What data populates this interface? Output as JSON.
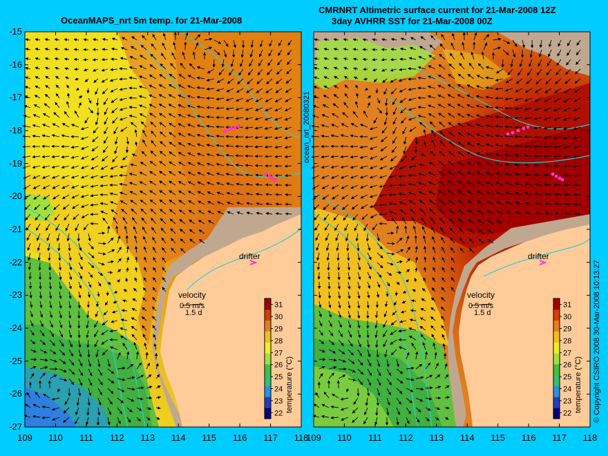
{
  "titles": {
    "left": "OceanMAPS_nrt 5m temp. for 21-Mar-2008",
    "right_line1": "CMRNRT Altimetric surface current for 21-Mar-2008 12Z",
    "right_line2": "3day AVHRR SST for 21-Mar-2008 00Z"
  },
  "axes": {
    "lat_labels": [
      "-15",
      "-16",
      "-17",
      "-18",
      "-19",
      "-20",
      "-21",
      "-22",
      "-23",
      "-24",
      "-25",
      "-26",
      "-27"
    ],
    "lon_labels": [
      "109",
      "110",
      "111",
      "112",
      "113",
      "114",
      "115",
      "116",
      "117",
      "118"
    ]
  },
  "map": {
    "lat_range": [
      -27,
      -15
    ],
    "lon_range": [
      109,
      118
    ],
    "land_color": "#ffcc99",
    "coast_shelf_color": "#c0a890",
    "contour_color": "#33cccc"
  },
  "annotations": {
    "drifter": "drifter",
    "velocity": "velocity",
    "velocity_scale": "0.5 m/s",
    "velocity_time": "1.5 d"
  },
  "colorbar": {
    "label": "temperature (°C)",
    "ticks": [
      "31",
      "30",
      "29",
      "28",
      "27",
      "26",
      "25",
      "24",
      "23",
      "22"
    ],
    "range": [
      21.5,
      31.5
    ],
    "colors": [
      "#000080",
      "#1f3fbf",
      "#2d8fe0",
      "#33c070",
      "#40c040",
      "#a0e040",
      "#f0f020",
      "#f0c020",
      "#e08020",
      "#d04000",
      "#a00000"
    ]
  },
  "side_labels": {
    "center": "ocean_nrt_20080321",
    "right": "© Copyright CSIRO 2008   30-Mar-2008 10:13:27"
  }
}
